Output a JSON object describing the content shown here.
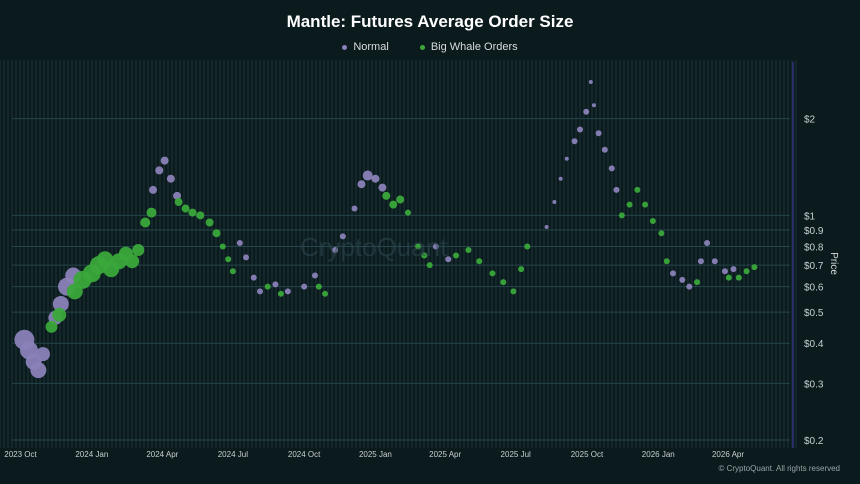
{
  "chart_data": {
    "type": "scatter",
    "title": "Mantle: Futures Average Order Size",
    "ylabel": "Price",
    "y_scale": "log",
    "ylim": [
      0.2,
      3.0
    ],
    "y_ticks": [
      {
        "value": 0.2,
        "label": "$0.2"
      },
      {
        "value": 0.3,
        "label": "$0.3"
      },
      {
        "value": 0.4,
        "label": "$0.4"
      },
      {
        "value": 0.5,
        "label": "$0.5"
      },
      {
        "value": 0.6,
        "label": "$0.6"
      },
      {
        "value": 0.7,
        "label": "$0.7"
      },
      {
        "value": 0.8,
        "label": "$0.8"
      },
      {
        "value": 0.9,
        "label": "$0.9"
      },
      {
        "value": 1.0,
        "label": "$1"
      },
      {
        "value": 2.0,
        "label": "$2"
      }
    ],
    "xlim": [
      "2023-09-20",
      "2026-06-20"
    ],
    "x_ticks": [
      {
        "value": "2023-10-01",
        "label": "2023 Oct"
      },
      {
        "value": "2024-01-01",
        "label": "2024 Jan"
      },
      {
        "value": "2024-04-01",
        "label": "2024 Apr"
      },
      {
        "value": "2024-07-01",
        "label": "2024 Jul"
      },
      {
        "value": "2024-10-01",
        "label": "2024 Oct"
      },
      {
        "value": "2025-01-01",
        "label": "2025 Jan"
      },
      {
        "value": "2025-04-01",
        "label": "2025 Apr"
      },
      {
        "value": "2025-07-01",
        "label": "2025 Jul"
      },
      {
        "value": "2025-10-01",
        "label": "2025 Oct"
      },
      {
        "value": "2026-01-01",
        "label": "2026 Jan"
      },
      {
        "value": "2026-04-01",
        "label": "2026 Apr"
      }
    ],
    "legend_position": "top-center",
    "series": [
      {
        "name": "Normal",
        "color": "#8a82b8",
        "points": [
          {
            "x": "2023-10-06",
            "y": 0.41,
            "s": 10
          },
          {
            "x": "2023-10-12",
            "y": 0.38,
            "s": 9
          },
          {
            "x": "2023-10-18",
            "y": 0.35,
            "s": 8
          },
          {
            "x": "2023-10-24",
            "y": 0.33,
            "s": 8
          },
          {
            "x": "2023-10-30",
            "y": 0.37,
            "s": 7
          },
          {
            "x": "2023-11-15",
            "y": 0.48,
            "s": 7
          },
          {
            "x": "2023-11-22",
            "y": 0.53,
            "s": 8
          },
          {
            "x": "2023-11-30",
            "y": 0.6,
            "s": 9
          },
          {
            "x": "2023-12-08",
            "y": 0.65,
            "s": 8
          },
          {
            "x": "2024-03-20",
            "y": 1.2,
            "s": 4
          },
          {
            "x": "2024-03-28",
            "y": 1.38,
            "s": 4
          },
          {
            "x": "2024-04-04",
            "y": 1.48,
            "s": 4
          },
          {
            "x": "2024-04-12",
            "y": 1.3,
            "s": 4
          },
          {
            "x": "2024-04-20",
            "y": 1.15,
            "s": 4
          },
          {
            "x": "2024-07-10",
            "y": 0.82,
            "s": 3
          },
          {
            "x": "2024-07-18",
            "y": 0.74,
            "s": 3
          },
          {
            "x": "2024-07-28",
            "y": 0.64,
            "s": 3
          },
          {
            "x": "2024-08-05",
            "y": 0.58,
            "s": 3
          },
          {
            "x": "2024-08-25",
            "y": 0.61,
            "s": 3
          },
          {
            "x": "2024-09-10",
            "y": 0.58,
            "s": 3
          },
          {
            "x": "2024-10-01",
            "y": 0.6,
            "s": 3
          },
          {
            "x": "2024-10-15",
            "y": 0.65,
            "s": 3
          },
          {
            "x": "2024-11-10",
            "y": 0.78,
            "s": 3
          },
          {
            "x": "2024-11-20",
            "y": 0.86,
            "s": 3
          },
          {
            "x": "2024-12-05",
            "y": 1.05,
            "s": 3
          },
          {
            "x": "2024-12-14",
            "y": 1.25,
            "s": 4
          },
          {
            "x": "2024-12-22",
            "y": 1.33,
            "s": 5
          },
          {
            "x": "2025-01-01",
            "y": 1.3,
            "s": 4
          },
          {
            "x": "2025-01-10",
            "y": 1.22,
            "s": 4
          },
          {
            "x": "2025-03-20",
            "y": 0.8,
            "s": 3
          },
          {
            "x": "2025-04-05",
            "y": 0.73,
            "s": 3
          },
          {
            "x": "2025-08-10",
            "y": 0.92,
            "s": 2
          },
          {
            "x": "2025-08-20",
            "y": 1.1,
            "s": 2
          },
          {
            "x": "2025-08-28",
            "y": 1.3,
            "s": 2
          },
          {
            "x": "2025-09-05",
            "y": 1.5,
            "s": 2
          },
          {
            "x": "2025-09-15",
            "y": 1.7,
            "s": 3
          },
          {
            "x": "2025-09-22",
            "y": 1.85,
            "s": 3
          },
          {
            "x": "2025-09-30",
            "y": 2.1,
            "s": 3
          },
          {
            "x": "2025-10-06",
            "y": 2.6,
            "s": 2
          },
          {
            "x": "2025-10-10",
            "y": 2.2,
            "s": 2
          },
          {
            "x": "2025-10-16",
            "y": 1.8,
            "s": 3
          },
          {
            "x": "2025-10-24",
            "y": 1.6,
            "s": 3
          },
          {
            "x": "2025-11-02",
            "y": 1.4,
            "s": 3
          },
          {
            "x": "2025-11-08",
            "y": 1.2,
            "s": 3
          },
          {
            "x": "2026-01-20",
            "y": 0.66,
            "s": 3
          },
          {
            "x": "2026-02-01",
            "y": 0.63,
            "s": 3
          },
          {
            "x": "2026-02-10",
            "y": 0.6,
            "s": 3
          },
          {
            "x": "2026-02-25",
            "y": 0.72,
            "s": 3
          },
          {
            "x": "2026-03-05",
            "y": 0.82,
            "s": 3
          },
          {
            "x": "2026-03-15",
            "y": 0.72,
            "s": 3
          },
          {
            "x": "2026-03-28",
            "y": 0.67,
            "s": 3
          },
          {
            "x": "2026-04-08",
            "y": 0.68,
            "s": 3
          }
        ]
      },
      {
        "name": "Big Whale Orders",
        "color": "#3aa83a",
        "points": [
          {
            "x": "2023-11-10",
            "y": 0.45,
            "s": 6
          },
          {
            "x": "2023-11-20",
            "y": 0.49,
            "s": 7
          },
          {
            "x": "2023-12-10",
            "y": 0.58,
            "s": 8
          },
          {
            "x": "2023-12-20",
            "y": 0.63,
            "s": 9
          },
          {
            "x": "2024-01-01",
            "y": 0.66,
            "s": 9
          },
          {
            "x": "2024-01-10",
            "y": 0.7,
            "s": 9
          },
          {
            "x": "2024-01-18",
            "y": 0.73,
            "s": 8
          },
          {
            "x": "2024-01-26",
            "y": 0.68,
            "s": 8
          },
          {
            "x": "2024-02-05",
            "y": 0.72,
            "s": 8
          },
          {
            "x": "2024-02-14",
            "y": 0.76,
            "s": 7
          },
          {
            "x": "2024-02-22",
            "y": 0.72,
            "s": 7
          },
          {
            "x": "2024-03-01",
            "y": 0.78,
            "s": 6
          },
          {
            "x": "2024-03-10",
            "y": 0.95,
            "s": 5
          },
          {
            "x": "2024-03-18",
            "y": 1.02,
            "s": 5
          },
          {
            "x": "2024-04-22",
            "y": 1.1,
            "s": 4
          },
          {
            "x": "2024-05-01",
            "y": 1.05,
            "s": 4
          },
          {
            "x": "2024-05-10",
            "y": 1.02,
            "s": 4
          },
          {
            "x": "2024-05-20",
            "y": 1.0,
            "s": 4
          },
          {
            "x": "2024-06-01",
            "y": 0.95,
            "s": 4
          },
          {
            "x": "2024-06-10",
            "y": 0.88,
            "s": 4
          },
          {
            "x": "2024-06-18",
            "y": 0.8,
            "s": 3
          },
          {
            "x": "2024-06-25",
            "y": 0.73,
            "s": 3
          },
          {
            "x": "2024-07-01",
            "y": 0.67,
            "s": 3
          },
          {
            "x": "2024-08-15",
            "y": 0.6,
            "s": 3
          },
          {
            "x": "2024-09-01",
            "y": 0.57,
            "s": 3
          },
          {
            "x": "2024-10-20",
            "y": 0.6,
            "s": 3
          },
          {
            "x": "2024-10-28",
            "y": 0.57,
            "s": 3
          },
          {
            "x": "2025-01-15",
            "y": 1.15,
            "s": 4
          },
          {
            "x": "2025-01-24",
            "y": 1.08,
            "s": 4
          },
          {
            "x": "2025-02-02",
            "y": 1.12,
            "s": 4
          },
          {
            "x": "2025-02-12",
            "y": 1.02,
            "s": 3
          },
          {
            "x": "2025-02-25",
            "y": 0.8,
            "s": 3
          },
          {
            "x": "2025-03-05",
            "y": 0.75,
            "s": 3
          },
          {
            "x": "2025-03-12",
            "y": 0.7,
            "s": 3
          },
          {
            "x": "2025-04-15",
            "y": 0.75,
            "s": 3
          },
          {
            "x": "2025-05-01",
            "y": 0.78,
            "s": 3
          },
          {
            "x": "2025-05-15",
            "y": 0.72,
            "s": 3
          },
          {
            "x": "2025-06-01",
            "y": 0.66,
            "s": 3
          },
          {
            "x": "2025-06-15",
            "y": 0.62,
            "s": 3
          },
          {
            "x": "2025-06-28",
            "y": 0.58,
            "s": 3
          },
          {
            "x": "2025-07-08",
            "y": 0.68,
            "s": 3
          },
          {
            "x": "2025-07-16",
            "y": 0.8,
            "s": 3
          },
          {
            "x": "2025-11-15",
            "y": 1.0,
            "s": 3
          },
          {
            "x": "2025-11-25",
            "y": 1.08,
            "s": 3
          },
          {
            "x": "2025-12-05",
            "y": 1.2,
            "s": 3
          },
          {
            "x": "2025-12-15",
            "y": 1.08,
            "s": 3
          },
          {
            "x": "2025-12-25",
            "y": 0.96,
            "s": 3
          },
          {
            "x": "2026-01-05",
            "y": 0.88,
            "s": 3
          },
          {
            "x": "2026-01-12",
            "y": 0.72,
            "s": 3
          },
          {
            "x": "2026-02-20",
            "y": 0.62,
            "s": 3
          },
          {
            "x": "2026-04-02",
            "y": 0.64,
            "s": 3
          },
          {
            "x": "2026-04-15",
            "y": 0.64,
            "s": 3
          },
          {
            "x": "2026-04-25",
            "y": 0.67,
            "s": 3
          },
          {
            "x": "2026-05-05",
            "y": 0.69,
            "s": 3
          }
        ]
      }
    ]
  },
  "copyright": "© CryptoQuant. All rights reserved",
  "watermark": "CryptoQuant",
  "colors": {
    "background": "#0b1a1d",
    "grid": "#1c3539",
    "axis_text": "#c8d0d3",
    "price_axis": "#2a2f6a"
  }
}
